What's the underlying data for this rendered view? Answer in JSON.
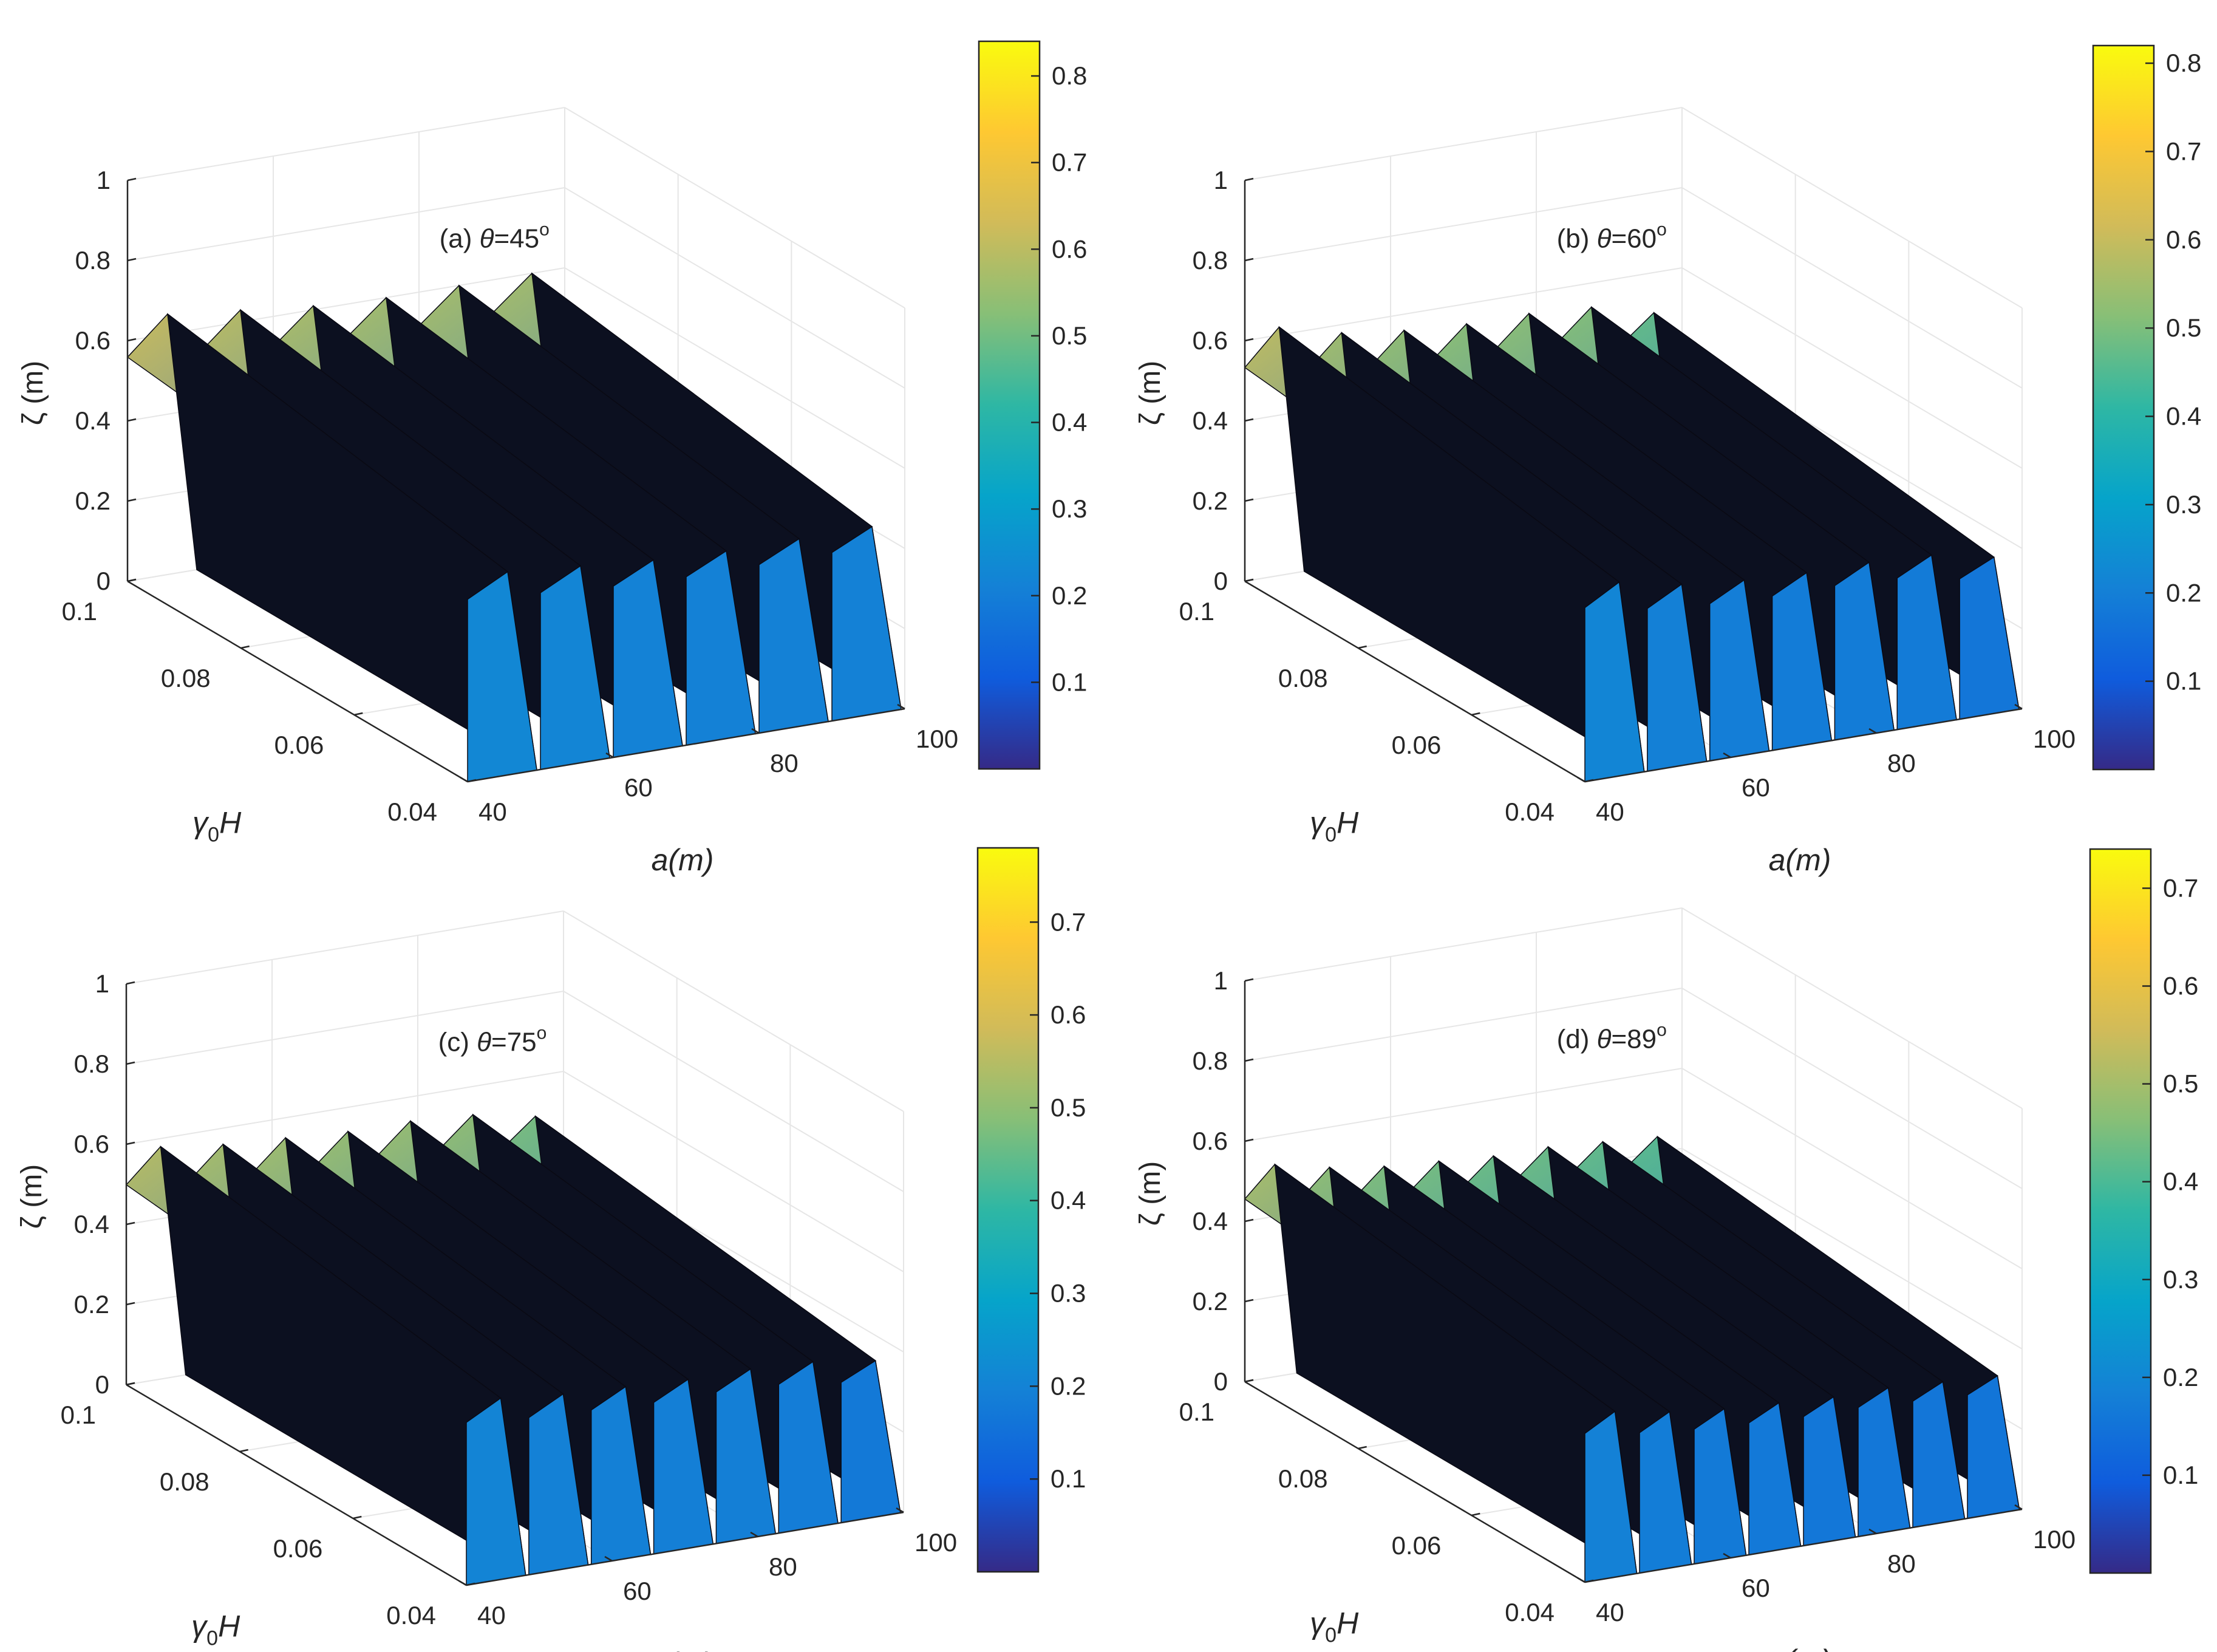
{
  "chart_data": [
    {
      "type": "surface3d",
      "annotation": {
        "prefix": "(a) ",
        "theta": "θ",
        "value": "=45",
        "unit": "o"
      },
      "axes": {
        "x": {
          "var_main": "γ",
          "var_sub": "0",
          "var_rest": "H",
          "ticks": [
            "0.1",
            "0.08",
            "0.06",
            "0.04"
          ],
          "range": [
            0.04,
            0.1
          ]
        },
        "y": {
          "label": "a(m)",
          "ticks": [
            "40",
            "60",
            "80",
            "100"
          ],
          "range": [
            40,
            100
          ]
        },
        "z": {
          "label": "ζ (m)",
          "ticks": [
            "0",
            "0.2",
            "0.4",
            "0.6",
            "0.8",
            "1"
          ],
          "range": [
            0,
            1
          ]
        }
      },
      "peak_heights": [
        0.65,
        0.63,
        0.61,
        0.6,
        0.6,
        0.6
      ],
      "colorbar": {
        "ticks": [
          "0.1",
          "0.2",
          "0.3",
          "0.4",
          "0.5",
          "0.6",
          "0.7",
          "0.8"
        ],
        "range": [
          0,
          0.84
        ]
      }
    },
    {
      "type": "surface3d",
      "annotation": {
        "prefix": "(b) ",
        "theta": "θ",
        "value": "=60",
        "unit": "o"
      },
      "axes": {
        "x": {
          "var_main": "γ",
          "var_sub": "0",
          "var_rest": "H",
          "ticks": [
            "0.1",
            "0.08",
            "0.06",
            "0.04"
          ],
          "range": [
            0.04,
            0.1
          ]
        },
        "y": {
          "label": "a(m)",
          "ticks": [
            "40",
            "60",
            "80",
            "100"
          ],
          "range": [
            40,
            100
          ]
        },
        "z": {
          "label": "ζ (m)",
          "ticks": [
            "0",
            "0.2",
            "0.4",
            "0.6",
            "0.8",
            "1"
          ],
          "range": [
            0,
            1
          ]
        }
      },
      "peak_heights": [
        0.62,
        0.58,
        0.56,
        0.55,
        0.55,
        0.54,
        0.5
      ],
      "colorbar": {
        "ticks": [
          "0.1",
          "0.2",
          "0.3",
          "0.4",
          "0.5",
          "0.6",
          "0.7",
          "0.8"
        ],
        "range": [
          0,
          0.82
        ]
      }
    },
    {
      "type": "surface3d",
      "annotation": {
        "prefix": "(c) ",
        "theta": "θ",
        "value": "=75",
        "unit": "o"
      },
      "axes": {
        "x": {
          "var_main": "γ",
          "var_sub": "0",
          "var_rest": "H",
          "ticks": [
            "0.1",
            "0.08",
            "0.06",
            "0.04"
          ],
          "range": [
            0.04,
            0.1
          ]
        },
        "y": {
          "label": "a(m)",
          "ticks": [
            "40",
            "60",
            "80",
            "100"
          ],
          "range": [
            40,
            100
          ]
        },
        "z": {
          "label": "ζ (m)",
          "ticks": [
            "0",
            "0.2",
            "0.4",
            "0.6",
            "0.8",
            "1"
          ],
          "range": [
            0,
            1
          ]
        }
      },
      "peak_heights": [
        0.58,
        0.56,
        0.55,
        0.54,
        0.54,
        0.53,
        0.5
      ],
      "colorbar": {
        "ticks": [
          "0.1",
          "0.2",
          "0.3",
          "0.4",
          "0.5",
          "0.6",
          "0.7"
        ],
        "range": [
          0,
          0.78
        ]
      }
    },
    {
      "type": "surface3d",
      "annotation": {
        "prefix": "(d) ",
        "theta": "θ",
        "value": "=89",
        "unit": "o"
      },
      "axes": {
        "x": {
          "var_main": "γ",
          "var_sub": "0",
          "var_rest": "H",
          "ticks": [
            "0.1",
            "0.08",
            "0.06",
            "0.04"
          ],
          "range": [
            0.04,
            0.1
          ]
        },
        "y": {
          "label": "a(m)",
          "ticks": [
            "40",
            "60",
            "80",
            "100"
          ],
          "range": [
            40,
            100
          ]
        },
        "z": {
          "label": "ζ (m)",
          "ticks": [
            "0",
            "0.2",
            "0.4",
            "0.6",
            "0.8",
            "1"
          ],
          "range": [
            0,
            1
          ]
        }
      },
      "peak_heights": [
        0.53,
        0.5,
        0.48,
        0.47,
        0.46,
        0.46,
        0.45,
        0.44
      ],
      "colorbar": {
        "ticks": [
          "0.1",
          "0.2",
          "0.3",
          "0.4",
          "0.5",
          "0.6",
          "0.7"
        ],
        "range": [
          0,
          0.74
        ]
      }
    }
  ],
  "colors": {
    "parula": [
      "#352a87",
      "#0f5cdd",
      "#1481d6",
      "#06a4ca",
      "#2eb7a4",
      "#87bf77",
      "#d1bb59",
      "#fec832",
      "#f9fb0e"
    ],
    "axis": "#262626",
    "grid": "#e6e6e6",
    "edge": "#0a0a14"
  }
}
